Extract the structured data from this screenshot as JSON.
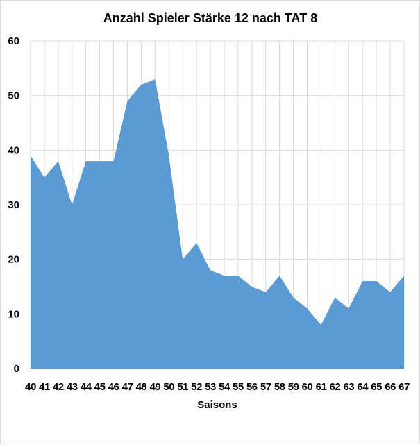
{
  "chart_data": {
    "type": "area",
    "title": "Anzahl Spieler Stärke 12 nach TAT 8",
    "xlabel": "Saisons",
    "ylabel": "",
    "categories": [
      "40",
      "41",
      "42",
      "43",
      "44",
      "45",
      "46",
      "47",
      "48",
      "49",
      "50",
      "51",
      "52",
      "53",
      "54",
      "55",
      "56",
      "57",
      "58",
      "59",
      "60",
      "61",
      "62",
      "63",
      "64",
      "65",
      "66",
      "67"
    ],
    "series": [
      {
        "values": [
          39,
          35,
          38,
          30,
          38,
          38,
          38,
          49,
          52,
          53,
          39,
          20,
          23,
          18,
          17,
          17,
          15,
          14,
          17,
          13,
          11,
          8,
          13,
          11,
          16,
          16,
          14,
          17
        ]
      }
    ],
    "ylim": [
      0,
      60
    ],
    "yticks": [
      0,
      10,
      20,
      30,
      40,
      50,
      60
    ],
    "grid": true,
    "colors": {
      "area": "#5b9bd5",
      "grid": "#d9d9d9",
      "text": "#000000"
    }
  }
}
